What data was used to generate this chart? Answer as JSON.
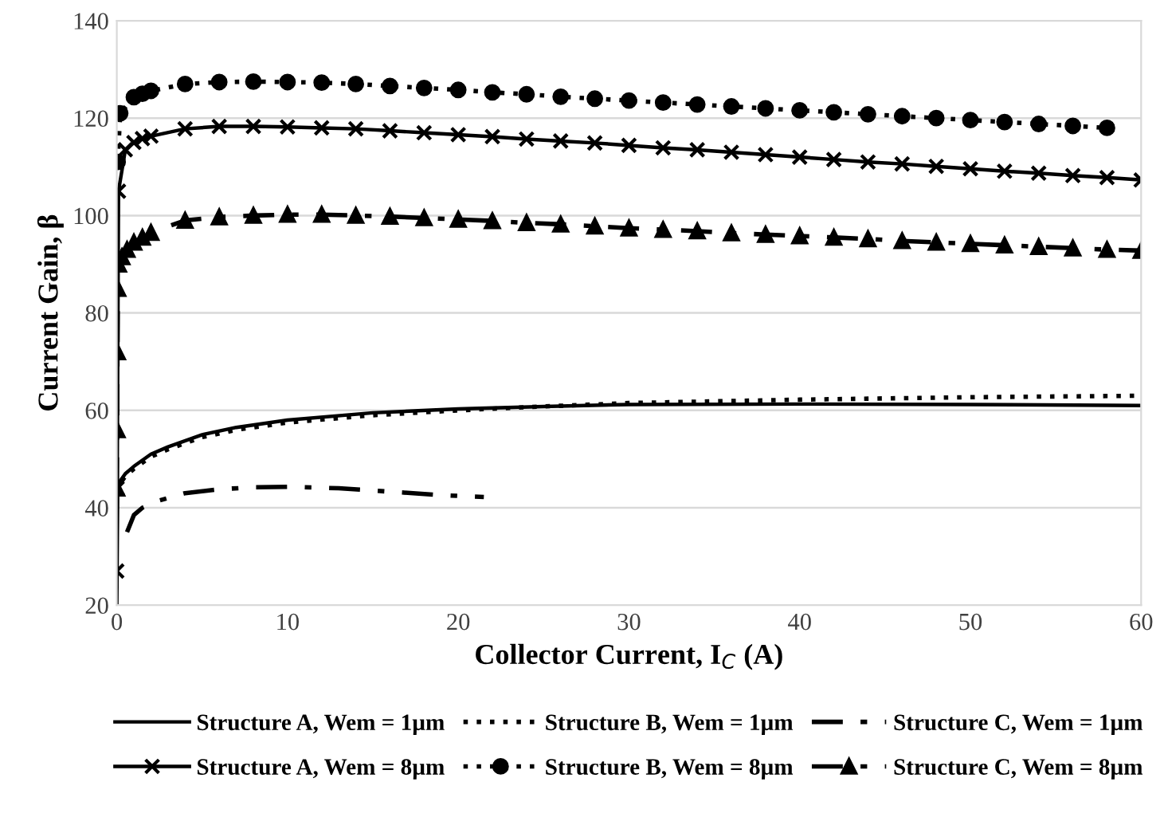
{
  "chart_data": {
    "type": "line",
    "xlabel": "Collector Current, I$_{C}$ (A)",
    "ylabel": "Current Gain, β",
    "xlim": [
      0,
      60
    ],
    "ylim": [
      20,
      140
    ],
    "xticks": [
      0,
      10,
      20,
      30,
      40,
      50,
      60
    ],
    "yticks": [
      20,
      40,
      60,
      80,
      100,
      120,
      140
    ],
    "grid": "y",
    "legend": "bottom",
    "series": [
      {
        "name": "Structure A, Wem = 1µm",
        "color": "#000000",
        "line_style": "solid",
        "marker": "none",
        "x": [
          0,
          0.05,
          0.2,
          0.5,
          1,
          2,
          3,
          5,
          7,
          10,
          15,
          20,
          25,
          30,
          40,
          50,
          60
        ],
        "values": [
          20,
          44,
          45.5,
          47,
          48.5,
          51,
          52.5,
          55,
          56.5,
          58,
          59.5,
          60.3,
          60.8,
          61.2,
          61.3,
          61.2,
          61
        ]
      },
      {
        "name": "Structure B, Wem = 1µm",
        "color": "#000000",
        "line_style": "dotted",
        "marker": "none",
        "x": [
          0.3,
          0.5,
          1,
          2,
          3,
          5,
          7,
          10,
          15,
          20,
          25,
          30,
          40,
          50,
          60
        ],
        "values": [
          45.5,
          46.5,
          48,
          50.5,
          52,
          54.5,
          56,
          57.5,
          59,
          60,
          60.8,
          61.5,
          62.2,
          62.7,
          63
        ]
      },
      {
        "name": "Structure C, Wem = 1µm",
        "color": "#000000",
        "line_style": "dashdot",
        "marker": "none",
        "x": [
          0.6,
          1,
          1.5,
          2.5,
          4,
          6,
          8,
          10,
          13,
          16,
          19,
          21.5
        ],
        "values": [
          35,
          38.5,
          40,
          41.5,
          43,
          43.8,
          44.2,
          44.3,
          44,
          43.3,
          42.6,
          42.2
        ]
      },
      {
        "name": "Structure A, Wem = 8µm",
        "color": "#000000",
        "line_style": "solid",
        "marker": "cross",
        "x": [
          0,
          0.02,
          0.1,
          0.5,
          1,
          1.5,
          2,
          4,
          6,
          8,
          10,
          12,
          14,
          16,
          18,
          20,
          22,
          24,
          26,
          28,
          30,
          32,
          34,
          36,
          38,
          40,
          42,
          44,
          46,
          48,
          50,
          52,
          54,
          56,
          58,
          60
        ],
        "values": [
          27,
          44,
          105,
          113.5,
          115,
          115.8,
          116.3,
          117.8,
          118.3,
          118.3,
          118.2,
          118,
          117.8,
          117.4,
          117,
          116.6,
          116.2,
          115.7,
          115.3,
          114.9,
          114.4,
          113.9,
          113.5,
          113,
          112.5,
          112,
          111.5,
          111,
          110.6,
          110.1,
          109.6,
          109.1,
          108.7,
          108.2,
          107.8,
          107.3
        ]
      },
      {
        "name": "Structure B, Wem = 8µm",
        "color": "#000000",
        "line_style": "dotted",
        "marker": "circle",
        "x": [
          0.05,
          0.2,
          1,
          1.5,
          2,
          4,
          6,
          8,
          10,
          12,
          14,
          16,
          18,
          20,
          22,
          24,
          26,
          28,
          30,
          32,
          34,
          36,
          38,
          40,
          42,
          44,
          46,
          48,
          50,
          52,
          54,
          56,
          58
        ],
        "values": [
          111,
          121,
          124.3,
          125,
          125.6,
          127,
          127.4,
          127.5,
          127.4,
          127.3,
          127,
          126.6,
          126.2,
          125.8,
          125.3,
          124.9,
          124.4,
          124,
          123.6,
          123.2,
          122.8,
          122.4,
          122,
          121.6,
          121.2,
          120.8,
          120.4,
          120,
          119.6,
          119.2,
          118.8,
          118.4,
          118
        ]
      },
      {
        "name": "Structure C, Wem = 8µm",
        "color": "#000000",
        "line_style": "dashdot",
        "marker": "triangle",
        "x": [
          0,
          0.02,
          0.04,
          0.06,
          0.1,
          0.3,
          0.6,
          1,
          1.5,
          2,
          4,
          6,
          8,
          10,
          12,
          14,
          16,
          18,
          20,
          22,
          24,
          26,
          28,
          30,
          32,
          34,
          36,
          38,
          40,
          42,
          44,
          46,
          48,
          50,
          52,
          54,
          56,
          58,
          60
        ],
        "values": [
          44,
          56,
          72,
          85,
          90,
          91.5,
          93,
          94.5,
          95.5,
          96.5,
          99,
          99.7,
          100,
          100.2,
          100.2,
          100,
          99.8,
          99.5,
          99.2,
          98.9,
          98.5,
          98.2,
          97.8,
          97.4,
          97.1,
          96.8,
          96.4,
          96.1,
          95.8,
          95.5,
          95.2,
          94.8,
          94.5,
          94.2,
          93.9,
          93.6,
          93.3,
          93,
          92.8
        ]
      }
    ]
  }
}
